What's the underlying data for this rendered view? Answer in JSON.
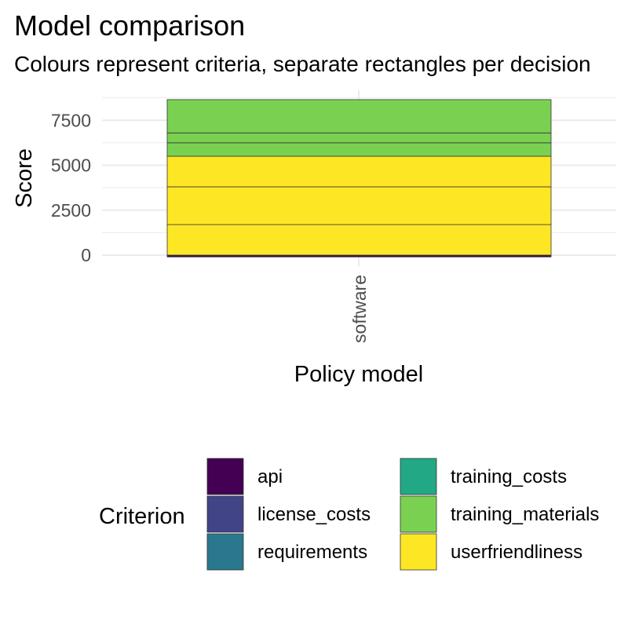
{
  "colors": {
    "api": "#440154",
    "license_costs": "#414487",
    "requirements": "#2a788e",
    "training_costs": "#22a884",
    "training_materials": "#7ad151",
    "userfriendliness": "#fde725",
    "grid": "#ebebeb",
    "segment_border": "#333333"
  },
  "chart_data": {
    "type": "bar",
    "stacked": true,
    "title": "Model comparison",
    "subtitle": "Colours represent criteria, separate rectangles per decision",
    "xlabel": "Policy model",
    "ylabel": "Score",
    "categories": [
      "software"
    ],
    "ylim": [
      -300,
      8900
    ],
    "yticks": [
      0,
      2500,
      5000,
      7500
    ],
    "ytick_labels": [
      "0",
      "2500",
      "5000",
      "7500"
    ],
    "grid": true,
    "legend": {
      "title": "Criterion",
      "position": "bottom",
      "columns": 2,
      "entries": [
        "api",
        "license_costs",
        "requirements",
        "training_costs",
        "training_materials",
        "userfriendliness"
      ]
    },
    "segments": [
      {
        "criterion": "api",
        "start": -100,
        "end": 0
      },
      {
        "criterion": "userfriendliness",
        "start": 0,
        "end": 1700
      },
      {
        "criterion": "userfriendliness",
        "start": 1700,
        "end": 3800
      },
      {
        "criterion": "userfriendliness",
        "start": 3800,
        "end": 5500
      },
      {
        "criterion": "training_materials",
        "start": 5500,
        "end": 6250
      },
      {
        "criterion": "training_materials",
        "start": 6250,
        "end": 6800
      },
      {
        "criterion": "training_materials",
        "start": 6800,
        "end": 8650
      }
    ]
  }
}
